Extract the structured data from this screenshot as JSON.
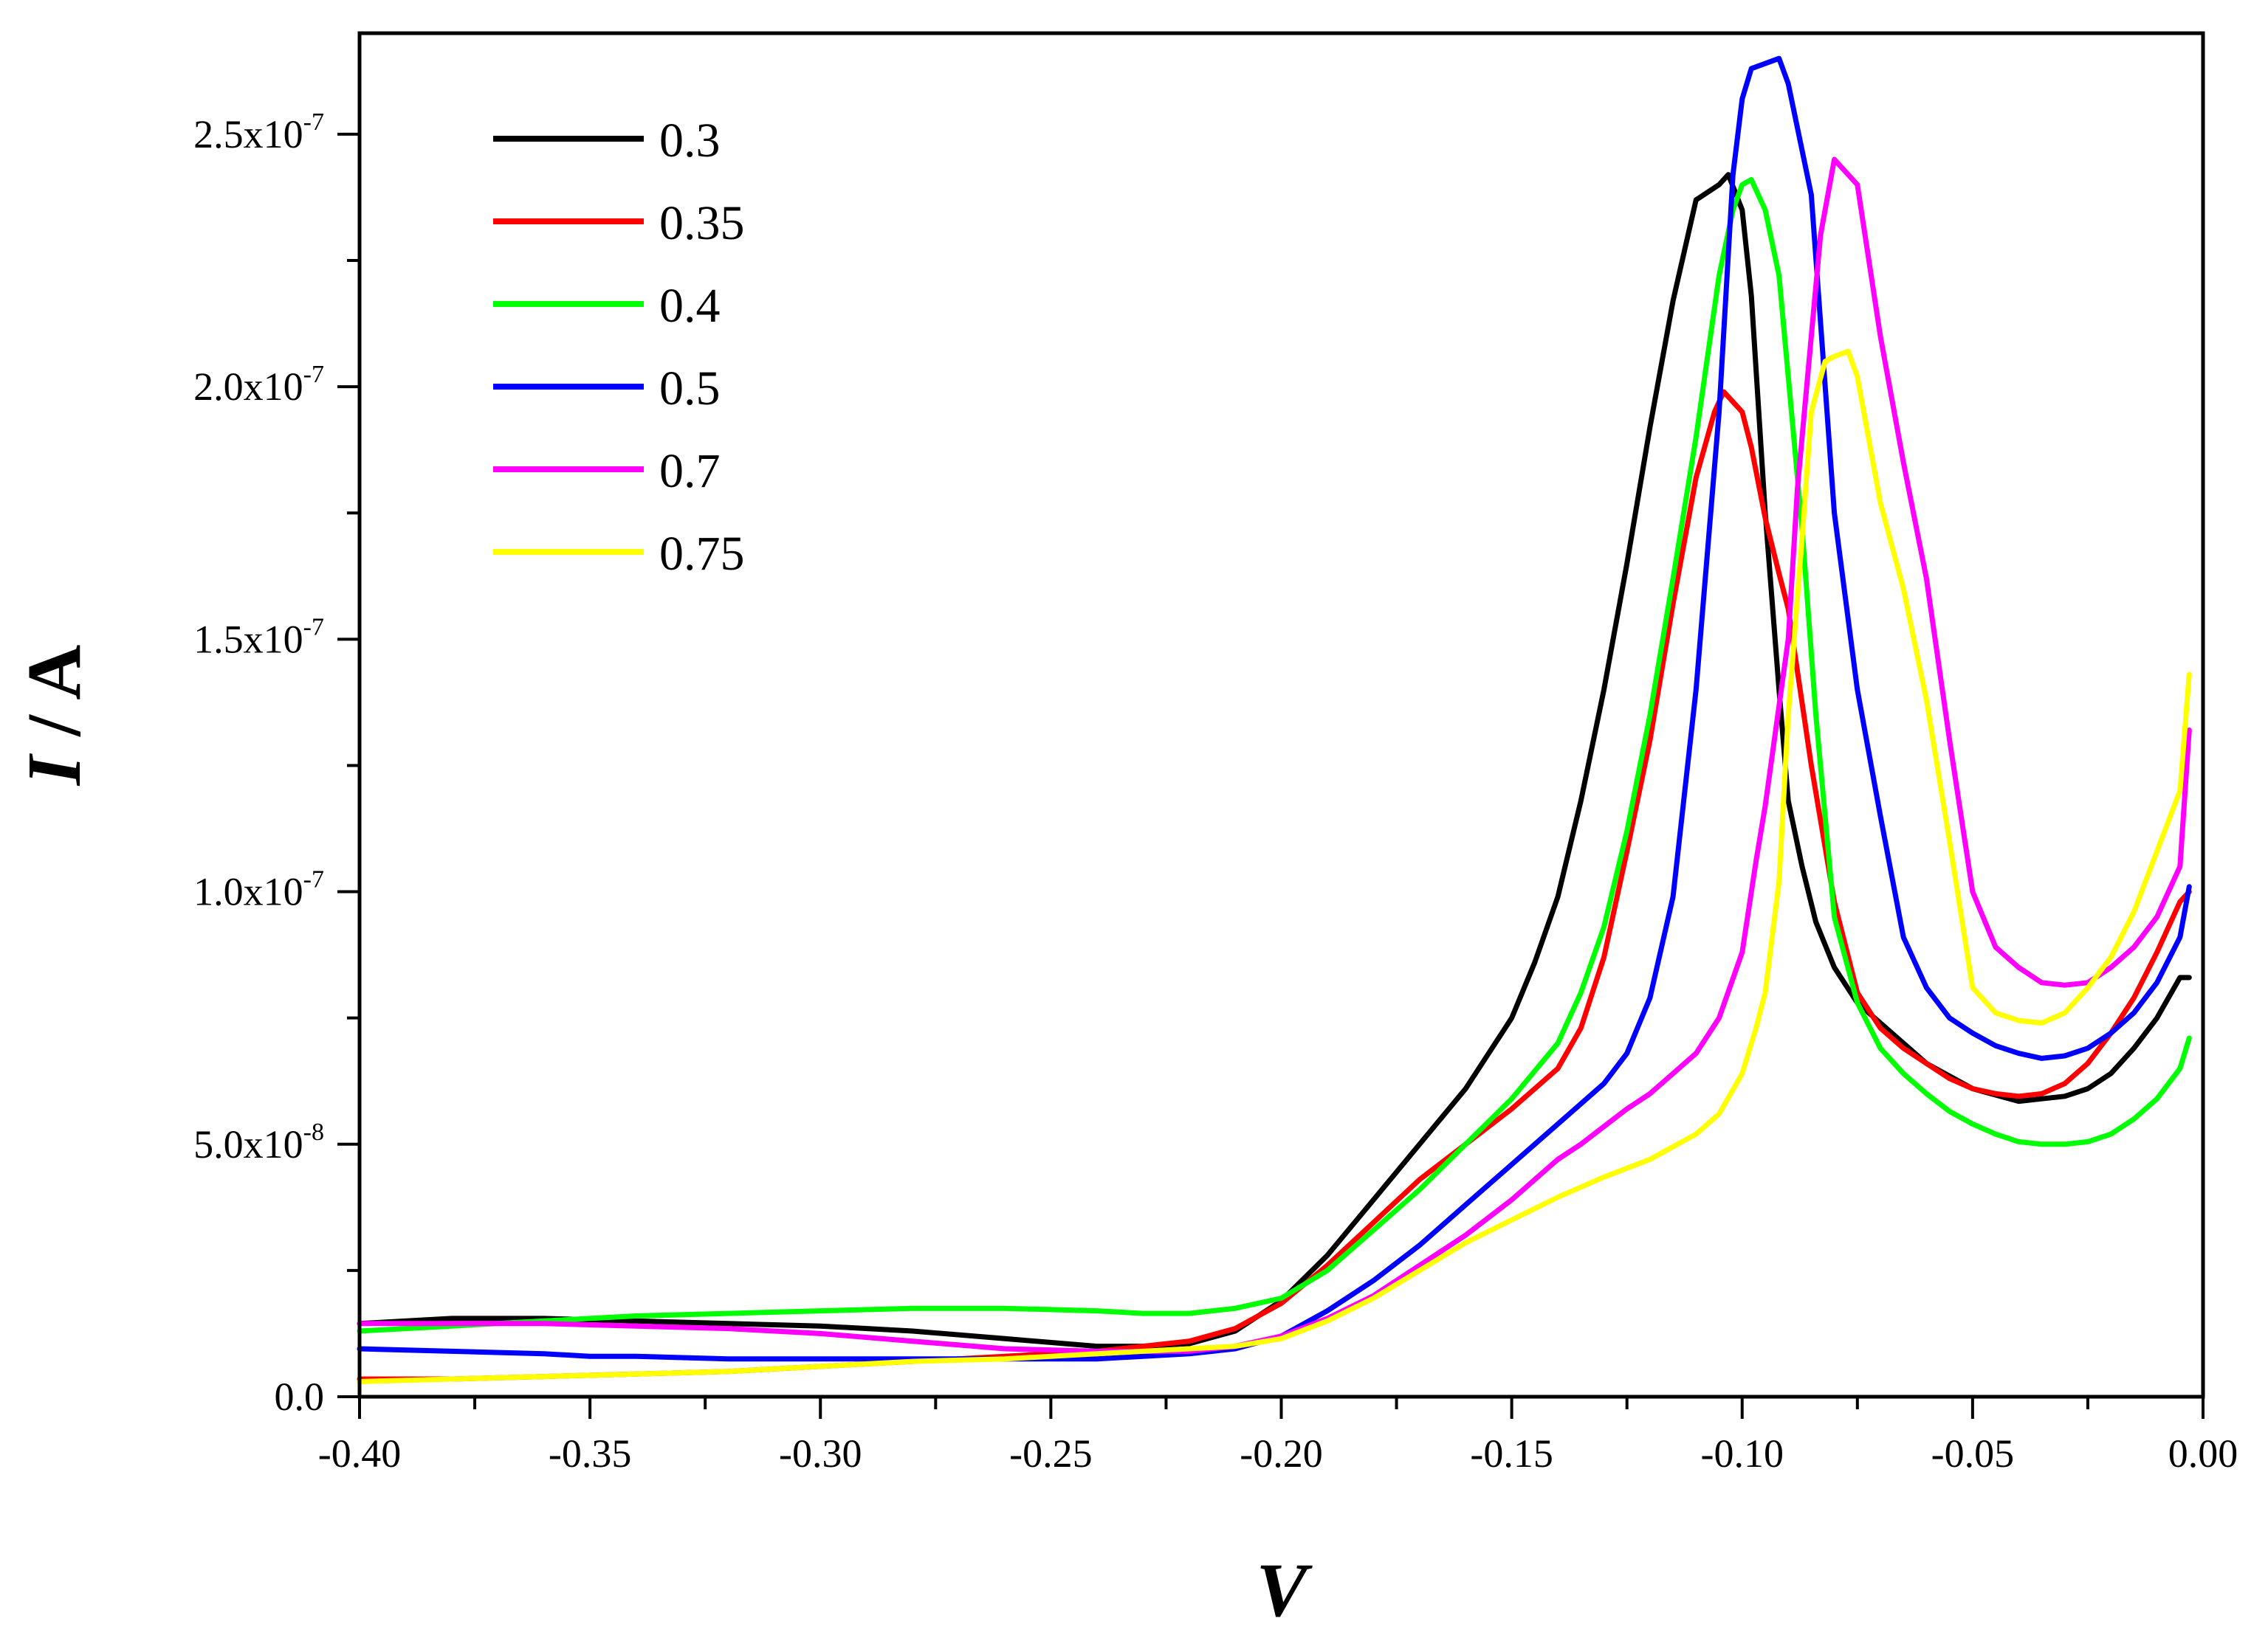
{
  "chart_data": {
    "type": "line",
    "xlabel": "V",
    "ylabel_italic": "I",
    "ylabel_rest": " / A",
    "xlim": [
      -0.4,
      0.0
    ],
    "ylim": [
      0,
      2.7e-07
    ],
    "x_ticks": [
      -0.4,
      -0.35,
      -0.3,
      -0.25,
      -0.2,
      -0.15,
      -0.1,
      -0.05,
      0.0
    ],
    "x_tick_labels": [
      "-0.40",
      "-0.35",
      "-0.30",
      "-0.25",
      "-0.20",
      "-0.15",
      "-0.10",
      "-0.05",
      "0.00"
    ],
    "y_ticks": [
      0,
      5e-08,
      1e-07,
      1.5e-07,
      2e-07,
      2.5e-07
    ],
    "y_tick_labels": [
      {
        "base": "0.0",
        "exp": ""
      },
      {
        "base": "5.0x10",
        "exp": "-8"
      },
      {
        "base": "1.0x10",
        "exp": "-7"
      },
      {
        "base": "1.5x10",
        "exp": "-7"
      },
      {
        "base": "2.0x10",
        "exp": "-7"
      },
      {
        "base": "2.5x10",
        "exp": "-7"
      }
    ],
    "legend_position": "top-left",
    "series": [
      {
        "name": "0.3",
        "color": "#000000",
        "x": [
          -0.4,
          -0.38,
          -0.36,
          -0.34,
          -0.32,
          -0.3,
          -0.28,
          -0.26,
          -0.24,
          -0.23,
          -0.22,
          -0.21,
          -0.2,
          -0.19,
          -0.18,
          -0.17,
          -0.16,
          -0.15,
          -0.145,
          -0.14,
          -0.135,
          -0.13,
          -0.125,
          -0.12,
          -0.115,
          -0.11,
          -0.105,
          -0.103,
          -0.1,
          -0.098,
          -0.095,
          -0.092,
          -0.09,
          -0.087,
          -0.084,
          -0.08,
          -0.075,
          -0.07,
          -0.065,
          -0.06,
          -0.05,
          -0.04,
          -0.035,
          -0.03,
          -0.025,
          -0.02,
          -0.015,
          -0.01,
          -0.005,
          -0.003
        ],
        "y": [
          1.45e-08,
          1.55e-08,
          1.55e-08,
          1.5e-08,
          1.45e-08,
          1.4e-08,
          1.3e-08,
          1.15e-08,
          1e-08,
          1e-08,
          1.05e-08,
          1.3e-08,
          1.9e-08,
          2.8e-08,
          3.9e-08,
          5e-08,
          6.1e-08,
          7.5e-08,
          8.6e-08,
          9.9e-08,
          1.18e-07,
          1.4e-07,
          1.65e-07,
          1.92e-07,
          2.17e-07,
          2.37e-07,
          2.4e-07,
          2.42e-07,
          2.35e-07,
          2.18e-07,
          1.75e-07,
          1.4e-07,
          1.18e-07,
          1.05e-07,
          9.4e-08,
          8.5e-08,
          7.8e-08,
          7.4e-08,
          7e-08,
          6.6e-08,
          6.1e-08,
          5.85e-08,
          5.9e-08,
          5.95e-08,
          6.1e-08,
          6.4e-08,
          6.9e-08,
          7.5e-08,
          8.3e-08,
          8.3e-08
        ]
      },
      {
        "name": "0.35",
        "color": "#ff0000",
        "x": [
          -0.4,
          -0.38,
          -0.36,
          -0.34,
          -0.32,
          -0.3,
          -0.28,
          -0.26,
          -0.24,
          -0.23,
          -0.22,
          -0.21,
          -0.2,
          -0.19,
          -0.18,
          -0.17,
          -0.16,
          -0.15,
          -0.14,
          -0.135,
          -0.13,
          -0.125,
          -0.12,
          -0.115,
          -0.11,
          -0.106,
          -0.104,
          -0.102,
          -0.1,
          -0.098,
          -0.095,
          -0.092,
          -0.09,
          -0.085,
          -0.08,
          -0.075,
          -0.07,
          -0.065,
          -0.06,
          -0.055,
          -0.05,
          -0.045,
          -0.04,
          -0.035,
          -0.03,
          -0.025,
          -0.02,
          -0.015,
          -0.01,
          -0.005,
          -0.003
        ],
        "y": [
          3.5e-09,
          3.5e-09,
          4e-09,
          4.5e-09,
          5e-09,
          6e-09,
          7e-09,
          8e-09,
          9e-09,
          1e-08,
          1.1e-08,
          1.35e-08,
          1.85e-08,
          2.6e-08,
          3.45e-08,
          4.3e-08,
          5e-08,
          5.7e-08,
          6.5e-08,
          7.3e-08,
          8.7e-08,
          1.08e-07,
          1.3e-07,
          1.57e-07,
          1.82e-07,
          1.95e-07,
          1.99e-07,
          1.97e-07,
          1.95e-07,
          1.88e-07,
          1.74e-07,
          1.63e-07,
          1.56e-07,
          1.25e-07,
          9.8e-08,
          8e-08,
          7.3e-08,
          6.9e-08,
          6.6e-08,
          6.3e-08,
          6.1e-08,
          6e-08,
          5.95e-08,
          6e-08,
          6.2e-08,
          6.6e-08,
          7.2e-08,
          7.9e-08,
          8.8e-08,
          9.8e-08,
          1e-07
        ]
      },
      {
        "name": "0.4",
        "color": "#00ff00",
        "x": [
          -0.4,
          -0.38,
          -0.36,
          -0.34,
          -0.32,
          -0.3,
          -0.28,
          -0.26,
          -0.24,
          -0.23,
          -0.22,
          -0.21,
          -0.2,
          -0.19,
          -0.18,
          -0.17,
          -0.16,
          -0.15,
          -0.14,
          -0.135,
          -0.13,
          -0.125,
          -0.12,
          -0.115,
          -0.11,
          -0.105,
          -0.102,
          -0.1,
          -0.098,
          -0.095,
          -0.092,
          -0.09,
          -0.087,
          -0.084,
          -0.08,
          -0.075,
          -0.07,
          -0.065,
          -0.06,
          -0.055,
          -0.05,
          -0.045,
          -0.04,
          -0.035,
          -0.03,
          -0.025,
          -0.02,
          -0.015,
          -0.01,
          -0.005,
          -0.003
        ],
        "y": [
          1.3e-08,
          1.4e-08,
          1.5e-08,
          1.6e-08,
          1.65e-08,
          1.7e-08,
          1.75e-08,
          1.75e-08,
          1.7e-08,
          1.65e-08,
          1.65e-08,
          1.75e-08,
          1.95e-08,
          2.5e-08,
          3.3e-08,
          4.1e-08,
          5e-08,
          5.9e-08,
          7e-08,
          8e-08,
          9.3e-08,
          1.12e-07,
          1.35e-07,
          1.62e-07,
          1.9e-07,
          2.22e-07,
          2.35e-07,
          2.4e-07,
          2.41e-07,
          2.35e-07,
          2.22e-07,
          2.02e-07,
          1.72e-07,
          1.35e-07,
          9.5e-08,
          7.8e-08,
          6.9e-08,
          6.4e-08,
          6e-08,
          5.65e-08,
          5.4e-08,
          5.2e-08,
          5.05e-08,
          5e-08,
          5e-08,
          5.05e-08,
          5.2e-08,
          5.5e-08,
          5.9e-08,
          6.5e-08,
          7.1e-08
        ]
      },
      {
        "name": "0.5",
        "color": "#0000ff",
        "x": [
          -0.4,
          -0.38,
          -0.36,
          -0.35,
          -0.34,
          -0.32,
          -0.3,
          -0.28,
          -0.26,
          -0.24,
          -0.23,
          -0.22,
          -0.21,
          -0.2,
          -0.19,
          -0.18,
          -0.17,
          -0.16,
          -0.15,
          -0.14,
          -0.135,
          -0.13,
          -0.125,
          -0.12,
          -0.115,
          -0.11,
          -0.105,
          -0.102,
          -0.1,
          -0.098,
          -0.095,
          -0.092,
          -0.09,
          -0.085,
          -0.08,
          -0.075,
          -0.07,
          -0.065,
          -0.06,
          -0.055,
          -0.05,
          -0.045,
          -0.04,
          -0.035,
          -0.03,
          -0.025,
          -0.02,
          -0.015,
          -0.01,
          -0.005,
          -0.003
        ],
        "y": [
          9.5e-09,
          9e-09,
          8.5e-09,
          8e-09,
          8e-09,
          7.5e-09,
          7.5e-09,
          7.5e-09,
          7.5e-09,
          7.5e-09,
          8e-09,
          8.5e-09,
          9.5e-09,
          1.2e-08,
          1.7e-08,
          2.3e-08,
          3e-08,
          3.8e-08,
          4.6e-08,
          5.4e-08,
          5.8e-08,
          6.2e-08,
          6.8e-08,
          7.9e-08,
          9.9e-08,
          1.4e-07,
          1.95e-07,
          2.42e-07,
          2.57e-07,
          2.63e-07,
          2.64e-07,
          2.65e-07,
          2.6e-07,
          2.38e-07,
          1.75e-07,
          1.4e-07,
          1.15e-07,
          9.1e-08,
          8.1e-08,
          7.5e-08,
          7.2e-08,
          6.95e-08,
          6.8e-08,
          6.7e-08,
          6.75e-08,
          6.9e-08,
          7.2e-08,
          7.6e-08,
          8.2e-08,
          9.1e-08,
          1.01e-07
        ]
      },
      {
        "name": "0.7",
        "color": "#ff00ff",
        "x": [
          -0.4,
          -0.38,
          -0.36,
          -0.34,
          -0.32,
          -0.3,
          -0.28,
          -0.26,
          -0.24,
          -0.23,
          -0.22,
          -0.21,
          -0.2,
          -0.19,
          -0.18,
          -0.17,
          -0.16,
          -0.15,
          -0.145,
          -0.14,
          -0.135,
          -0.13,
          -0.125,
          -0.12,
          -0.115,
          -0.11,
          -0.105,
          -0.1,
          -0.097,
          -0.095,
          -0.09,
          -0.088,
          -0.085,
          -0.083,
          -0.08,
          -0.075,
          -0.07,
          -0.065,
          -0.06,
          -0.055,
          -0.05,
          -0.045,
          -0.04,
          -0.035,
          -0.03,
          -0.025,
          -0.02,
          -0.015,
          -0.01,
          -0.005,
          -0.003
        ],
        "y": [
          1.45e-08,
          1.45e-08,
          1.45e-08,
          1.4e-08,
          1.35e-08,
          1.25e-08,
          1.1e-08,
          9.5e-09,
          9e-09,
          9e-09,
          9e-09,
          1e-08,
          1.2e-08,
          1.55e-08,
          2e-08,
          2.6e-08,
          3.2e-08,
          3.9e-08,
          4.3e-08,
          4.7e-08,
          5e-08,
          5.35e-08,
          5.7e-08,
          6e-08,
          6.4e-08,
          6.8e-08,
          7.5e-08,
          8.8e-08,
          1.06e-07,
          1.17e-07,
          1.5e-07,
          1.8e-07,
          2.1e-07,
          2.3e-07,
          2.45e-07,
          2.4e-07,
          2.1e-07,
          1.85e-07,
          1.62e-07,
          1.3e-07,
          1e-07,
          8.9e-08,
          8.5e-08,
          8.2e-08,
          8.15e-08,
          8.2e-08,
          8.5e-08,
          8.9e-08,
          9.5e-08,
          1.05e-07,
          1.32e-07
        ]
      },
      {
        "name": "0.75",
        "color": "#ffff00",
        "x": [
          -0.4,
          -0.38,
          -0.36,
          -0.34,
          -0.32,
          -0.3,
          -0.28,
          -0.26,
          -0.24,
          -0.23,
          -0.22,
          -0.21,
          -0.2,
          -0.19,
          -0.18,
          -0.17,
          -0.16,
          -0.15,
          -0.14,
          -0.13,
          -0.12,
          -0.115,
          -0.11,
          -0.105,
          -0.1,
          -0.097,
          -0.095,
          -0.092,
          -0.09,
          -0.087,
          -0.085,
          -0.082,
          -0.08,
          -0.077,
          -0.075,
          -0.07,
          -0.065,
          -0.06,
          -0.055,
          -0.05,
          -0.045,
          -0.04,
          -0.035,
          -0.03,
          -0.025,
          -0.02,
          -0.015,
          -0.01,
          -0.005,
          -0.003
        ],
        "y": [
          3e-09,
          3.5e-09,
          4e-09,
          4.5e-09,
          5e-09,
          6e-09,
          7e-09,
          7.5e-09,
          8.5e-09,
          9e-09,
          9.5e-09,
          1e-08,
          1.15e-08,
          1.5e-08,
          1.95e-08,
          2.5e-08,
          3.05e-08,
          3.5e-08,
          3.95e-08,
          4.35e-08,
          4.7e-08,
          4.95e-08,
          5.2e-08,
          5.6e-08,
          6.4e-08,
          7.3e-08,
          8e-08,
          1.02e-07,
          1.35e-07,
          1.7e-07,
          1.95e-07,
          2.05e-07,
          2.06e-07,
          2.07e-07,
          2.02e-07,
          1.77e-07,
          1.6e-07,
          1.38e-07,
          1.1e-07,
          8.1e-08,
          7.6e-08,
          7.45e-08,
          7.4e-08,
          7.6e-08,
          8.1e-08,
          8.7e-08,
          9.6e-08,
          1.08e-07,
          1.2e-07,
          1.43e-07
        ]
      }
    ]
  }
}
